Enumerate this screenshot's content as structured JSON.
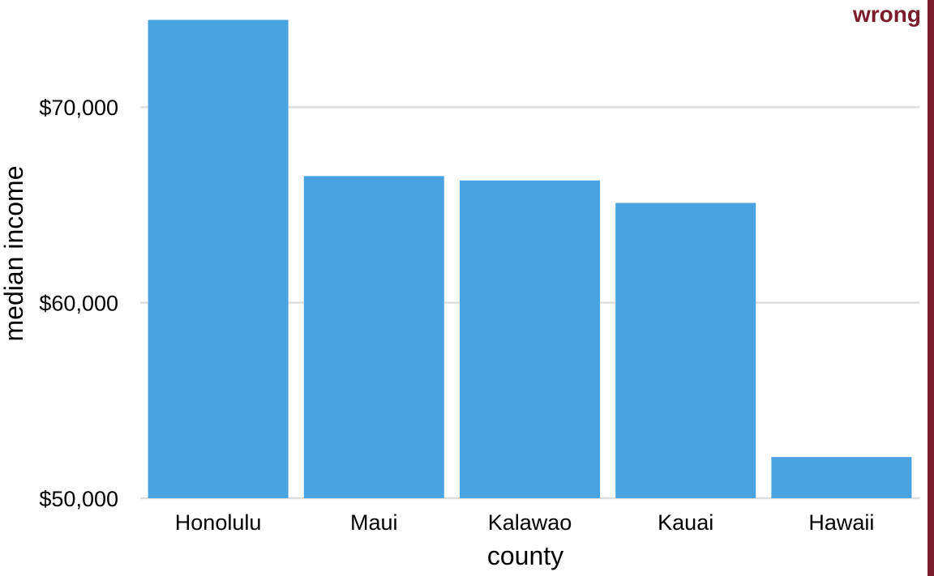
{
  "stamp": {
    "label": "wrong",
    "color": "#7A1C2C"
  },
  "colors": {
    "bar": "#4AA3E1",
    "grid": "#DEDEDE",
    "text": "#000000"
  },
  "chart_data": {
    "type": "bar",
    "title": "",
    "xlabel": "county",
    "ylabel": "median income",
    "categories": [
      "Honolulu",
      "Maui",
      "Kalawao",
      "Kauai",
      "Hawaii"
    ],
    "values": [
      74460,
      66472,
      66250,
      65101,
      52108
    ],
    "ylim": [
      50000,
      75000
    ],
    "yticks": [
      50000,
      60000,
      70000
    ],
    "ytick_labels": [
      "$50,000",
      "$60,000",
      "$70,000"
    ],
    "grid": "horizontal",
    "legend": "none"
  }
}
